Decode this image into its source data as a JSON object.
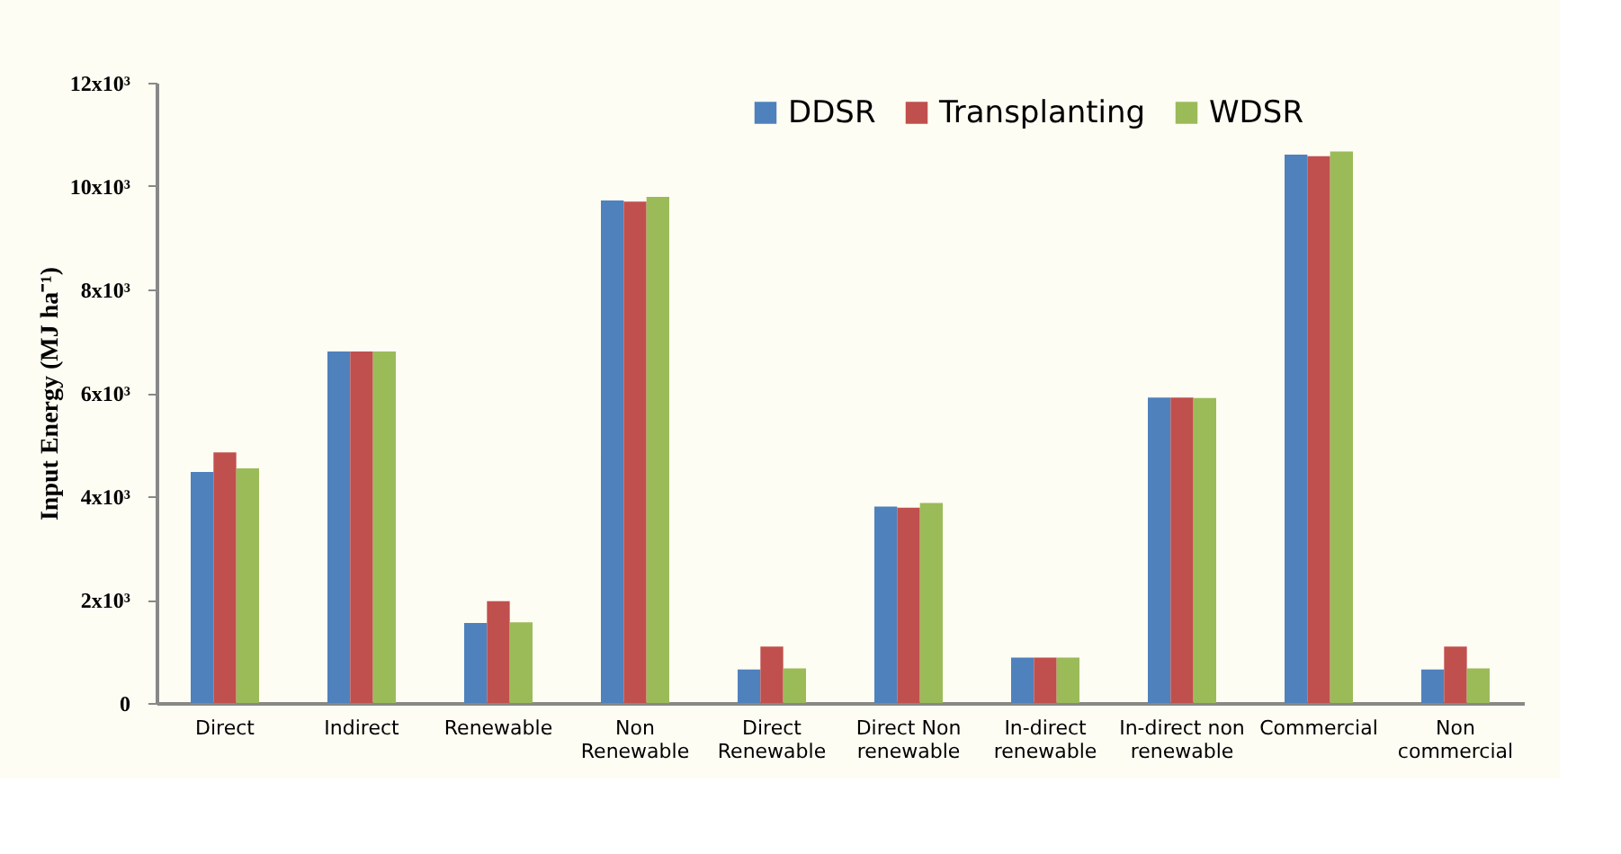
{
  "chart_data": {
    "type": "bar",
    "ylabel": "Input Energy (MJ ha⁻¹)",
    "categories": [
      "Direct",
      "Indirect",
      "Renewable",
      "Non Renewable",
      "Direct Renewable",
      "Direct Non renewable",
      "In-direct renewable",
      "In-direct non renewable",
      "Commercial",
      "Non commercial"
    ],
    "series": [
      {
        "name": "DDSR",
        "color": "#4f81bd",
        "values": [
          4470,
          6800,
          1550,
          9720,
          650,
          3800,
          880,
          5910,
          10610,
          650
        ]
      },
      {
        "name": "Transplanting",
        "color": "#c0504d",
        "values": [
          4850,
          6800,
          1970,
          9700,
          1090,
          3780,
          880,
          5910,
          10580,
          1090
        ]
      },
      {
        "name": "WDSR",
        "color": "#9bbb59",
        "values": [
          4540,
          6800,
          1560,
          9790,
          670,
          3870,
          880,
          5900,
          10670,
          670
        ]
      }
    ],
    "ylim": [
      0,
      12000
    ],
    "yticks": [
      0,
      {
        "value": 2000,
        "label": "2x10³"
      },
      {
        "value": 4000,
        "label": "4x10³"
      },
      {
        "value": 6000,
        "label": "6x10³"
      },
      {
        "value": 8000,
        "label": "8x10³"
      },
      {
        "value": 10000,
        "label": "10x10³"
      },
      {
        "value": 12000,
        "label": "12x10³"
      }
    ],
    "grid": false,
    "legend": "top"
  }
}
